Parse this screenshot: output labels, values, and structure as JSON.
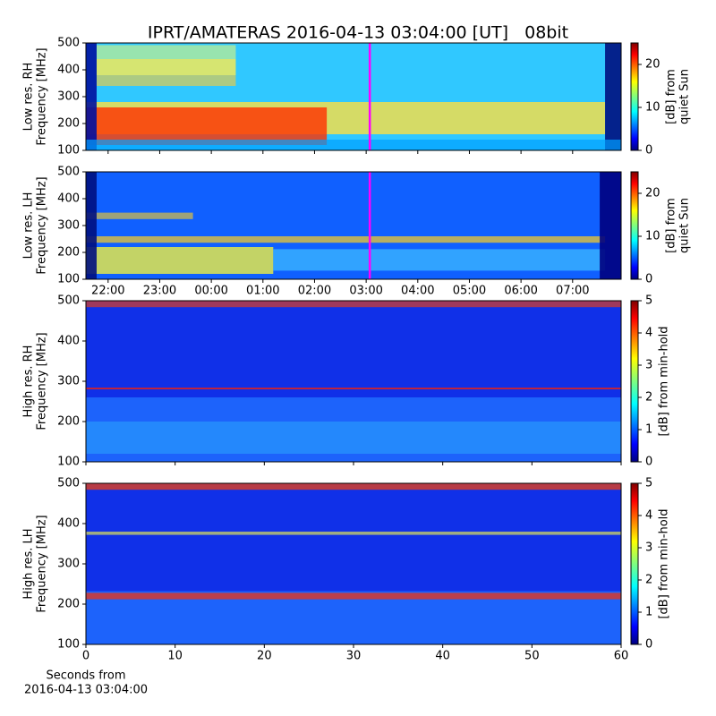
{
  "chart_data": [
    {
      "type": "spectrogram",
      "title": "IPRT/AMATERAS 2016-04-13 03:04:00 [UT]   08bit",
      "ylabel": [
        "Low res. RH",
        "Frequency [MHz]"
      ],
      "ylim": [
        100,
        500
      ],
      "yticks": [
        100,
        200,
        300,
        400,
        500
      ],
      "xlim": [
        21.57,
        31.94
      ],
      "cursor_x": 27.07,
      "cursor_color": "#ff00ff",
      "clim": [
        0,
        25
      ],
      "cticks": [
        0,
        10,
        20
      ],
      "clabel": [
        "[dB] from",
        "quiet Sun"
      ]
    },
    {
      "type": "spectrogram",
      "ylabel": [
        "Low res. LH",
        "Frequency [MHz]"
      ],
      "ylim": [
        100,
        500
      ],
      "yticks": [
        100,
        200,
        300,
        400,
        500
      ],
      "xlim": [
        21.57,
        31.94
      ],
      "cursor_x": 27.07,
      "cursor_color": "#ff00ff",
      "xticks": [
        {
          "value": 22,
          "label": "22:00"
        },
        {
          "value": 23,
          "label": "23:00"
        },
        {
          "value": 24,
          "label": "00:00"
        },
        {
          "value": 25,
          "label": "01:00"
        },
        {
          "value": 26,
          "label": "02:00"
        },
        {
          "value": 27,
          "label": "03:00"
        },
        {
          "value": 28,
          "label": "04:00"
        },
        {
          "value": 29,
          "label": "05:00"
        },
        {
          "value": 30,
          "label": "06:00"
        },
        {
          "value": 31,
          "label": "07:00"
        }
      ],
      "clim": [
        0,
        25
      ],
      "cticks": [
        0,
        10,
        20
      ],
      "clabel": [
        "[dB] from",
        "quiet Sun"
      ]
    },
    {
      "type": "spectrogram",
      "ylabel": [
        "High res. RH",
        "Frequency [MHz]"
      ],
      "ylim": [
        100,
        500
      ],
      "yticks": [
        100,
        200,
        300,
        400,
        500
      ],
      "xlim": [
        0,
        60
      ],
      "clim": [
        0,
        5
      ],
      "cticks": [
        0,
        1,
        2,
        3,
        4,
        5
      ],
      "clabel": [
        "[dB] from min-hold"
      ]
    },
    {
      "type": "spectrogram",
      "ylabel": [
        "High res. LH",
        "Frequency [MHz]"
      ],
      "ylim": [
        100,
        500
      ],
      "yticks": [
        100,
        200,
        300,
        400,
        500
      ],
      "xlim": [
        0,
        60
      ],
      "xticks": [
        0,
        10,
        20,
        30,
        40,
        50,
        60
      ],
      "xlabel": [
        "Seconds from",
        "2016-04-13 03:04:00"
      ],
      "clim": [
        0,
        5
      ],
      "cticks": [
        0,
        1,
        2,
        3,
        4,
        5
      ],
      "clabel": [
        "[dB] from min-hold"
      ]
    }
  ]
}
